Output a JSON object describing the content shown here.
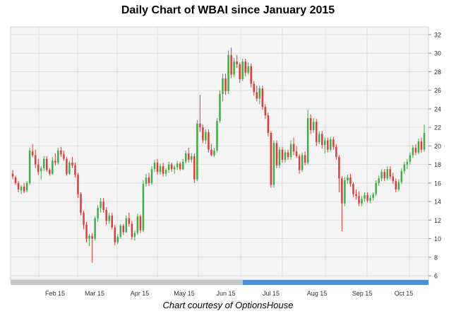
{
  "page": {
    "title": "Daily Chart of WBAI since January 2015",
    "caption": "Chart courtesy of OptionsHouse"
  },
  "chart_data": {
    "type": "candlestick",
    "title": "Daily Chart of WBAI since January 2015",
    "xlabel": "",
    "ylabel": "",
    "y_axis_side": "right",
    "ylim": [
      5,
      33
    ],
    "y_ticks": [
      "6",
      "8",
      "10",
      "12",
      "14",
      "16",
      "18",
      "20",
      "22",
      "24",
      "26",
      "28",
      "30",
      "32"
    ],
    "x_tick_labels": [
      "Feb 15",
      "Mar 15",
      "Apr 15",
      "May 15",
      "Jun 15",
      "Jul 15",
      "Aug 15",
      "Sep 15",
      "Oct 15"
    ],
    "grid": true,
    "colors": {
      "up": "#3cb043",
      "down": "#e53935",
      "grid": "#dddddd",
      "background": "#f4f4f4",
      "scrollbar_track": "#c8c8c8",
      "scrollbar_thumb": "#4a8fd0"
    },
    "series": [
      {
        "values": [
          [
            0,
            17.0,
            17.4,
            16.4,
            16.7
          ],
          [
            1,
            16.6,
            16.8,
            15.8,
            16.0
          ],
          [
            2,
            16.0,
            16.2,
            15.0,
            15.3
          ],
          [
            3,
            15.2,
            15.8,
            14.8,
            15.6
          ],
          [
            4,
            15.6,
            16.0,
            14.9,
            15.1
          ],
          [
            5,
            15.2,
            16.2,
            15.0,
            16.0
          ],
          [
            6,
            16.0,
            19.8,
            15.8,
            19.5
          ],
          [
            7,
            19.4,
            20.2,
            18.8,
            19.0
          ],
          [
            8,
            19.0,
            19.6,
            17.6,
            18.0
          ],
          [
            9,
            18.0,
            18.6,
            16.9,
            17.2
          ],
          [
            10,
            17.3,
            17.8,
            16.4,
            17.6
          ],
          [
            11,
            17.6,
            18.9,
            17.3,
            18.6
          ],
          [
            12,
            18.6,
            18.9,
            17.2,
            17.4
          ],
          [
            13,
            17.4,
            17.6,
            16.8,
            17.0
          ],
          [
            14,
            17.0,
            18.8,
            16.9,
            18.4
          ],
          [
            15,
            18.4,
            19.2,
            17.9,
            18.2
          ],
          [
            16,
            18.2,
            19.8,
            18.0,
            19.5
          ],
          [
            17,
            19.5,
            19.9,
            18.8,
            19.1
          ],
          [
            18,
            19.1,
            19.5,
            18.4,
            18.6
          ],
          [
            19,
            18.6,
            18.8,
            16.8,
            17.0
          ],
          [
            20,
            17.0,
            18.4,
            16.9,
            18.2
          ],
          [
            21,
            18.2,
            18.8,
            17.6,
            17.9
          ],
          [
            22,
            17.9,
            18.2,
            16.6,
            16.9
          ],
          [
            23,
            16.9,
            17.1,
            14.4,
            14.8
          ],
          [
            24,
            14.8,
            15.0,
            12.5,
            12.8
          ],
          [
            25,
            12.8,
            13.0,
            11.0,
            11.5
          ],
          [
            26,
            11.5,
            11.8,
            9.6,
            10.0
          ],
          [
            27,
            10.0,
            10.5,
            9.2,
            10.3
          ],
          [
            28,
            10.3,
            10.6,
            7.4,
            10.0
          ],
          [
            29,
            10.0,
            12.4,
            9.8,
            12.2
          ],
          [
            30,
            12.2,
            13.6,
            11.8,
            13.3
          ],
          [
            31,
            13.3,
            14.4,
            12.8,
            14.0
          ],
          [
            32,
            14.0,
            14.4,
            12.8,
            13.1
          ],
          [
            33,
            13.1,
            13.4,
            11.5,
            11.9
          ],
          [
            34,
            11.9,
            12.8,
            11.6,
            12.5
          ],
          [
            35,
            12.5,
            12.8,
            11.0,
            11.2
          ],
          [
            36,
            11.2,
            11.5,
            9.3,
            9.6
          ],
          [
            37,
            9.6,
            10.5,
            9.4,
            10.2
          ],
          [
            38,
            10.2,
            11.6,
            10.0,
            11.4
          ],
          [
            39,
            11.4,
            11.6,
            10.4,
            10.7
          ],
          [
            40,
            10.7,
            12.5,
            10.6,
            12.2
          ],
          [
            41,
            12.2,
            12.8,
            11.3,
            11.6
          ],
          [
            42,
            11.6,
            11.9,
            9.9,
            10.2
          ],
          [
            43,
            10.2,
            10.9,
            9.8,
            10.6
          ],
          [
            44,
            10.6,
            12.7,
            10.4,
            12.4
          ],
          [
            45,
            12.4,
            12.6,
            10.6,
            10.9
          ],
          [
            46,
            10.9,
            16.3,
            10.7,
            15.9
          ],
          [
            47,
            15.9,
            17.0,
            15.6,
            16.6
          ],
          [
            48,
            16.6,
            17.1,
            15.7,
            16.0
          ],
          [
            49,
            16.0,
            17.8,
            15.8,
            17.5
          ],
          [
            50,
            17.5,
            18.5,
            17.2,
            18.2
          ],
          [
            51,
            18.2,
            18.6,
            16.9,
            17.2
          ],
          [
            52,
            17.2,
            18.1,
            16.9,
            17.8
          ],
          [
            53,
            17.8,
            18.2,
            16.7,
            17.0
          ],
          [
            54,
            17.0,
            17.6,
            16.7,
            17.4
          ],
          [
            55,
            17.4,
            18.3,
            17.1,
            18.0
          ],
          [
            56,
            18.0,
            18.2,
            17.2,
            17.5
          ],
          [
            57,
            17.5,
            17.9,
            17.0,
            17.7
          ],
          [
            58,
            17.7,
            18.4,
            17.4,
            18.1
          ],
          [
            59,
            18.1,
            18.3,
            17.3,
            17.5
          ],
          [
            60,
            17.5,
            18.6,
            17.4,
            18.3
          ],
          [
            61,
            18.3,
            19.5,
            18.1,
            19.2
          ],
          [
            62,
            19.2,
            19.8,
            18.2,
            18.5
          ],
          [
            63,
            18.5,
            19.2,
            18.2,
            18.9
          ],
          [
            64,
            18.9,
            19.2,
            16.0,
            16.4
          ],
          [
            65,
            16.4,
            22.8,
            16.2,
            22.4
          ],
          [
            66,
            22.4,
            25.5,
            21.5,
            22.0
          ],
          [
            67,
            22.0,
            22.3,
            20.3,
            20.6
          ],
          [
            68,
            20.6,
            21.8,
            20.2,
            21.5
          ],
          [
            69,
            21.5,
            21.8,
            19.3,
            19.6
          ],
          [
            70,
            19.6,
            20.2,
            18.9,
            19.0
          ],
          [
            71,
            19.0,
            19.8,
            18.8,
            19.5
          ],
          [
            72,
            19.5,
            23.0,
            19.3,
            22.7
          ],
          [
            73,
            22.7,
            26.0,
            22.5,
            25.6
          ],
          [
            74,
            25.6,
            27.8,
            24.8,
            27.3
          ],
          [
            75,
            27.3,
            27.8,
            25.5,
            25.9
          ],
          [
            76,
            25.9,
            30.3,
            25.6,
            29.8
          ],
          [
            77,
            29.8,
            30.6,
            27.3,
            27.7
          ],
          [
            78,
            27.7,
            29.5,
            27.4,
            29.1
          ],
          [
            79,
            29.1,
            29.8,
            28.4,
            28.8
          ],
          [
            80,
            28.8,
            29.0,
            26.8,
            27.2
          ],
          [
            81,
            27.2,
            29.4,
            27.0,
            29.1
          ],
          [
            82,
            29.1,
            29.4,
            27.5,
            27.9
          ],
          [
            83,
            27.9,
            29.0,
            27.7,
            28.6
          ],
          [
            84,
            28.6,
            28.9,
            26.3,
            26.7
          ],
          [
            85,
            26.7,
            27.0,
            25.4,
            25.8
          ],
          [
            86,
            25.8,
            26.5,
            24.8,
            25.1
          ],
          [
            87,
            25.1,
            26.5,
            24.5,
            26.2
          ],
          [
            88,
            26.2,
            26.5,
            23.9,
            24.2
          ],
          [
            89,
            24.2,
            24.5,
            22.9,
            23.3
          ],
          [
            90,
            23.3,
            23.6,
            21.0,
            21.4
          ],
          [
            91,
            21.4,
            21.6,
            15.5,
            15.8
          ],
          [
            92,
            15.8,
            20.6,
            15.5,
            20.3
          ],
          [
            93,
            20.3,
            20.6,
            17.6,
            17.9
          ],
          [
            94,
            17.9,
            19.9,
            17.6,
            19.6
          ],
          [
            95,
            19.6,
            19.9,
            18.2,
            18.5
          ],
          [
            96,
            18.5,
            19.6,
            18.2,
            19.3
          ],
          [
            97,
            19.3,
            19.6,
            18.5,
            18.8
          ],
          [
            98,
            18.8,
            20.6,
            18.5,
            20.2
          ],
          [
            99,
            20.2,
            20.9,
            19.0,
            19.4
          ],
          [
            100,
            19.4,
            20.0,
            18.7,
            18.9
          ],
          [
            101,
            18.9,
            19.1,
            17.0,
            17.4
          ],
          [
            102,
            17.4,
            19.3,
            17.2,
            19.0
          ],
          [
            103,
            19.0,
            19.4,
            17.9,
            18.2
          ],
          [
            104,
            18.2,
            23.9,
            18.0,
            23.0
          ],
          [
            105,
            23.0,
            23.4,
            21.3,
            21.7
          ],
          [
            106,
            21.7,
            23.0,
            21.4,
            22.6
          ],
          [
            107,
            22.6,
            22.9,
            20.0,
            20.4
          ],
          [
            108,
            20.4,
            21.6,
            20.2,
            21.3
          ],
          [
            109,
            21.3,
            21.6,
            19.7,
            20.1
          ],
          [
            110,
            20.1,
            20.9,
            19.2,
            20.6
          ],
          [
            111,
            20.6,
            20.9,
            19.3,
            19.6
          ],
          [
            112,
            19.6,
            21.0,
            19.4,
            20.7
          ],
          [
            113,
            20.7,
            21.0,
            19.6,
            19.9
          ],
          [
            114,
            19.9,
            20.2,
            18.5,
            18.8
          ],
          [
            115,
            18.8,
            19.0,
            15.0,
            16.5
          ],
          [
            116,
            16.5,
            16.7,
            10.8,
            13.8
          ],
          [
            117,
            13.8,
            16.6,
            13.5,
            16.3
          ],
          [
            118,
            16.3,
            16.9,
            15.9,
            16.6
          ],
          [
            119,
            16.6,
            17.0,
            15.6,
            15.9
          ],
          [
            120,
            15.9,
            16.1,
            14.5,
            14.8
          ],
          [
            121,
            14.8,
            15.3,
            14.2,
            14.6
          ],
          [
            122,
            14.6,
            15.1,
            13.5,
            13.8
          ],
          [
            123,
            13.8,
            14.6,
            13.5,
            14.3
          ],
          [
            124,
            14.3,
            15.0,
            14.0,
            14.7
          ],
          [
            125,
            14.7,
            15.0,
            13.9,
            14.1
          ],
          [
            126,
            14.1,
            14.7,
            13.8,
            14.4
          ],
          [
            127,
            14.4,
            15.0,
            14.1,
            14.8
          ],
          [
            128,
            14.8,
            16.3,
            14.6,
            16.0
          ],
          [
            129,
            16.0,
            16.8,
            15.7,
            16.5
          ],
          [
            130,
            16.5,
            17.5,
            16.2,
            17.2
          ],
          [
            131,
            17.2,
            17.5,
            16.2,
            16.5
          ],
          [
            132,
            16.5,
            17.8,
            16.3,
            17.5
          ],
          [
            133,
            17.5,
            17.8,
            16.4,
            16.7
          ],
          [
            134,
            16.7,
            17.1,
            15.9,
            16.2
          ],
          [
            135,
            16.2,
            16.5,
            15.0,
            15.3
          ],
          [
            136,
            15.3,
            16.4,
            15.1,
            16.1
          ],
          [
            137,
            16.1,
            17.6,
            15.9,
            17.3
          ],
          [
            138,
            17.3,
            18.3,
            17.0,
            18.0
          ],
          [
            139,
            18.0,
            18.6,
            17.5,
            18.3
          ],
          [
            140,
            18.3,
            19.3,
            18.0,
            19.0
          ],
          [
            141,
            19.0,
            20.1,
            18.7,
            19.8
          ],
          [
            142,
            19.8,
            20.2,
            19.0,
            19.3
          ],
          [
            143,
            19.3,
            20.8,
            19.1,
            20.5
          ],
          [
            144,
            20.5,
            20.9,
            19.3,
            19.6
          ],
          [
            145,
            19.6,
            22.3,
            19.4,
            21.4
          ]
        ]
      }
    ]
  }
}
